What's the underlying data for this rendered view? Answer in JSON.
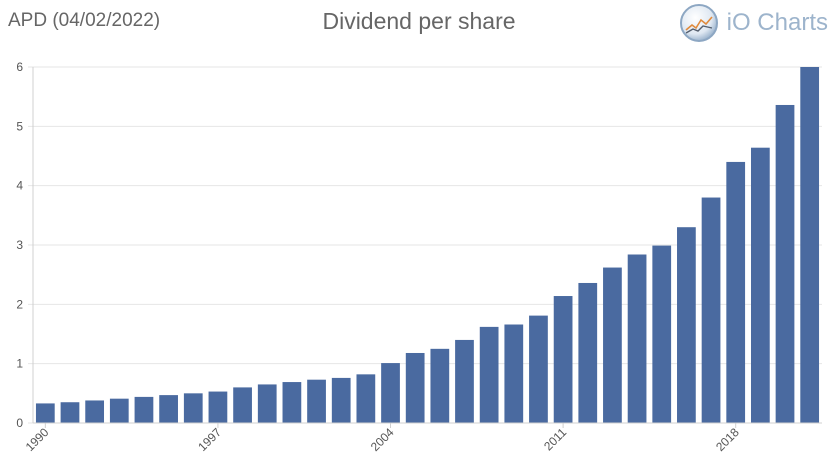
{
  "header": {
    "ticker_date": "APD (04/02/2022)",
    "title": "Dividend per share",
    "brand": "iO Charts"
  },
  "colors": {
    "bar": "#4a6aa0",
    "grid": "#e6e6e6",
    "axis": "#d0d0d0",
    "text": "#666666"
  },
  "chart_data": {
    "type": "bar",
    "title": "Dividend per share",
    "xlabel": "",
    "ylabel": "",
    "categories": [
      1990,
      1991,
      1992,
      1993,
      1994,
      1995,
      1996,
      1997,
      1998,
      1999,
      2000,
      2001,
      2002,
      2003,
      2004,
      2005,
      2006,
      2007,
      2008,
      2009,
      2010,
      2011,
      2012,
      2013,
      2014,
      2015,
      2016,
      2017,
      2018,
      2019,
      2020,
      2021
    ],
    "values": [
      0.33,
      0.35,
      0.38,
      0.41,
      0.44,
      0.47,
      0.5,
      0.53,
      0.6,
      0.65,
      0.69,
      0.73,
      0.76,
      0.82,
      1.01,
      1.18,
      1.25,
      1.4,
      1.62,
      1.66,
      1.81,
      2.14,
      2.36,
      2.62,
      2.84,
      2.99,
      3.3,
      3.8,
      4.4,
      4.64,
      5.36,
      6.0
    ],
    "x_tick_labels": [
      "1990",
      "1997",
      "2004",
      "2011",
      "2018"
    ],
    "y_ticks": [
      0,
      1,
      2,
      3,
      4,
      5,
      6
    ],
    "ylim": [
      0,
      6
    ],
    "grid": true
  }
}
